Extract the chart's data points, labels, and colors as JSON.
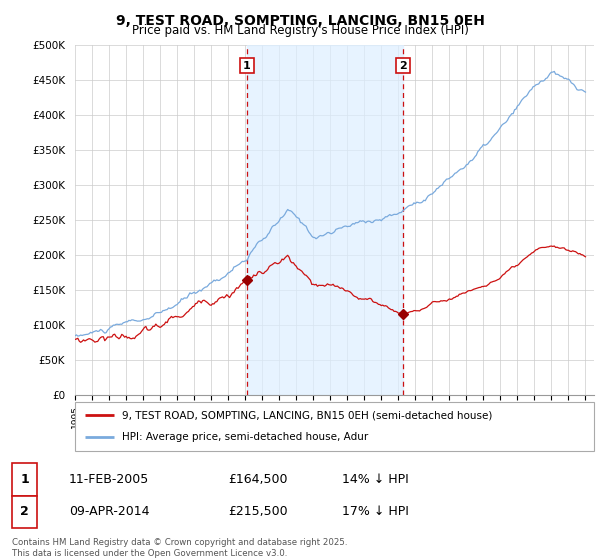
{
  "title": "9, TEST ROAD, SOMPTING, LANCING, BN15 0EH",
  "subtitle": "Price paid vs. HM Land Registry's House Price Index (HPI)",
  "ylabel_ticks": [
    "£0",
    "£50K",
    "£100K",
    "£150K",
    "£200K",
    "£250K",
    "£300K",
    "£350K",
    "£400K",
    "£450K",
    "£500K"
  ],
  "ytick_values": [
    0,
    50000,
    100000,
    150000,
    200000,
    250000,
    300000,
    350000,
    400000,
    450000,
    500000
  ],
  "ylim": [
    0,
    500000
  ],
  "xlim_start": 1995.0,
  "xlim_end": 2025.5,
  "hpi_color": "#7aaadd",
  "price_color": "#cc1111",
  "vline_color": "#cc1111",
  "sale1_year": 2005.1,
  "sale1_label": "1",
  "sale1_date": "11-FEB-2005",
  "sale1_price": "£164,500",
  "sale1_hpi": "14% ↓ HPI",
  "sale2_year": 2014.27,
  "sale2_label": "2",
  "sale2_date": "09-APR-2014",
  "sale2_price": "£215,500",
  "sale2_hpi": "17% ↓ HPI",
  "legend_line1": "9, TEST ROAD, SOMPTING, LANCING, BN15 0EH (semi-detached house)",
  "legend_line2": "HPI: Average price, semi-detached house, Adur",
  "footer": "Contains HM Land Registry data © Crown copyright and database right 2025.\nThis data is licensed under the Open Government Licence v3.0.",
  "shade_color": "#ddeeff",
  "grid_color": "#cccccc",
  "marker_color": "#990000",
  "sale1_price_val": 164500,
  "sale2_price_val": 215500
}
